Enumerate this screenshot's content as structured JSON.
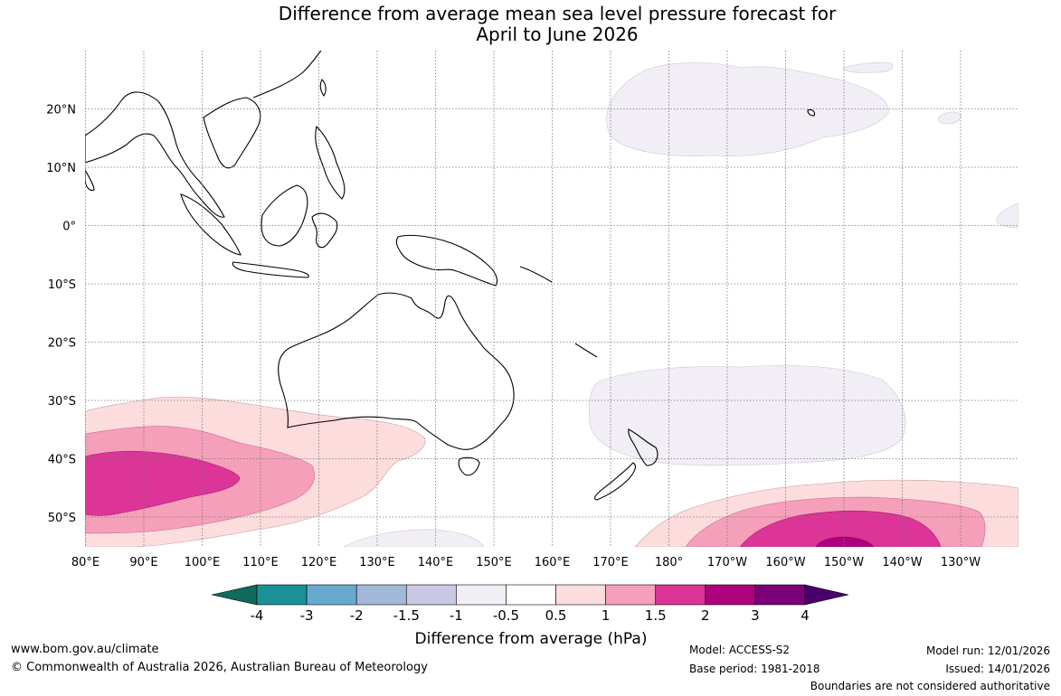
{
  "title": {
    "line1": "Difference from average mean sea level pressure forecast for",
    "line2": "April to June 2026"
  },
  "axes": {
    "lon_labels": [
      "80°E",
      "90°E",
      "100°E",
      "110°E",
      "120°E",
      "130°E",
      "140°E",
      "150°E",
      "160°E",
      "170°E",
      "180°",
      "170°W",
      "160°W",
      "150°W",
      "140°W",
      "130°W"
    ],
    "lat_labels": [
      "20°N",
      "10°N",
      "0°",
      "10°S",
      "20°S",
      "30°S",
      "40°S",
      "50°S"
    ]
  },
  "colorbar": {
    "title": "Difference from average (hPa)",
    "ticks": [
      "-4",
      "-3",
      "-2",
      "-1.5",
      "-1",
      "-0.5",
      "0.5",
      "1",
      "1.5",
      "2",
      "3",
      "4"
    ],
    "colors": [
      "#0e6b5e",
      "#1b9097",
      "#68aacf",
      "#a3b8d8",
      "#c9c9e3",
      "#f1eef5",
      "#ffffff",
      "#fddcdd",
      "#f59fba",
      "#dd3497",
      "#ae017e",
      "#7a0177",
      "#49006a"
    ]
  },
  "footer": {
    "website": "www.bom.gov.au/climate",
    "copyright": "© Commonwealth of Australia 2026, Australian Bureau of Meteorology",
    "model": "Model: ACCESS-S2",
    "base_period": "Base period: 1981-2018",
    "model_run": "Model run: 12/01/2026",
    "issued": "Issued: 14/01/2026",
    "disclaimer": "Boundaries are not considered authoritative"
  }
}
